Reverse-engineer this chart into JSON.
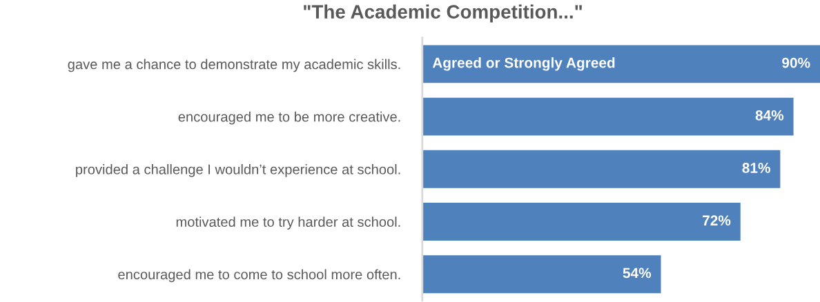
{
  "chart_data": {
    "type": "bar",
    "orientation": "horizontal",
    "title": "\"The Academic Competition...\"",
    "categories": [
      "gave me a chance to demonstrate my academic skills.",
      "encouraged me to be more creative.",
      "provided a challenge I wouldn’t experience at school.",
      "motivated me to try harder at school.",
      "encouraged me to come to school more often."
    ],
    "series": [
      {
        "name": "Agreed or Strongly Agreed",
        "color": "#4f81bd",
        "values": [
          90,
          84,
          81,
          72,
          54
        ],
        "value_labels": [
          "90%",
          "84%",
          "81%",
          "72%",
          "54%"
        ]
      }
    ],
    "grid": false,
    "legend": false
  }
}
